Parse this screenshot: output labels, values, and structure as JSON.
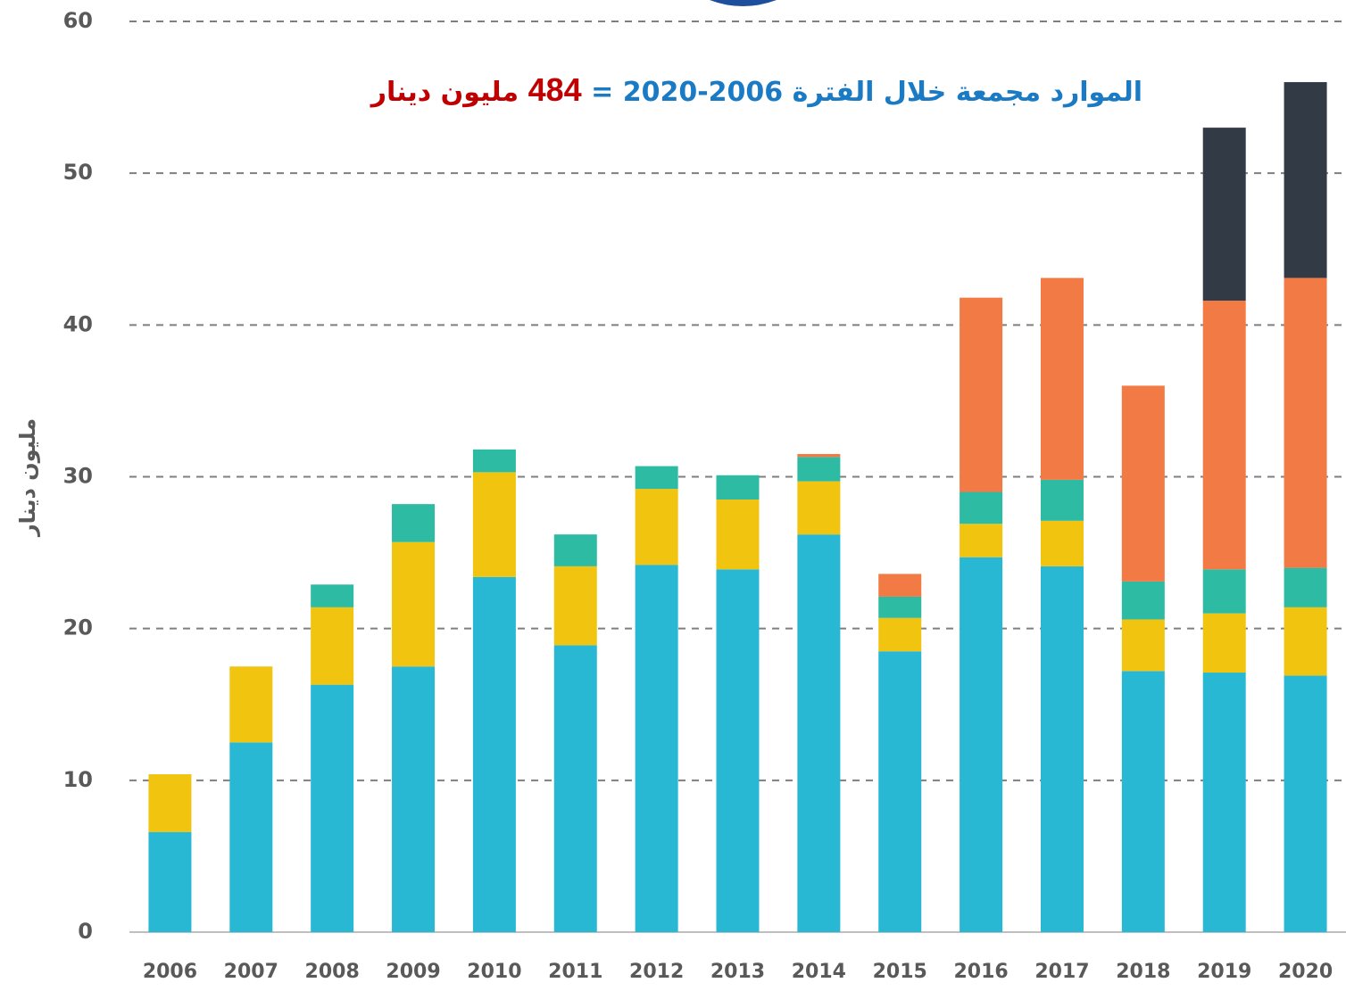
{
  "chart_data": {
    "type": "stacked_bar",
    "title": "الموارد مجمعة خلال الفترة 2006-2020 =",
    "title_total": "484",
    "title_unit": "مليون دينار",
    "ylabel": "مليون دينار",
    "categories": [
      "2006",
      "2007",
      "2008",
      "2009",
      "2010",
      "2011",
      "2012",
      "2013",
      "2014",
      "2015",
      "2016",
      "2017",
      "2018",
      "2019",
      "2020"
    ],
    "series": [
      {
        "color": "#29b8d4",
        "values": [
          6.6,
          12.5,
          16.3,
          17.5,
          23.4,
          18.9,
          24.2,
          23.9,
          26.2,
          18.5,
          24.7,
          24.1,
          17.2,
          17.1,
          16.9
        ]
      },
      {
        "color": "#f0c40f",
        "values": [
          3.8,
          5.0,
          5.1,
          8.2,
          6.9,
          5.2,
          5.0,
          4.6,
          3.5,
          2.2,
          2.2,
          3.0,
          3.4,
          3.9,
          4.5
        ]
      },
      {
        "color": "#2dbba4",
        "values": [
          null,
          null,
          1.5,
          2.5,
          1.5,
          2.1,
          1.5,
          1.6,
          1.6,
          1.4,
          2.1,
          2.7,
          2.5,
          2.9,
          2.6
        ]
      },
      {
        "color": "#f27a45",
        "values": [
          null,
          null,
          null,
          null,
          null,
          null,
          null,
          null,
          0.2,
          1.5,
          12.8,
          13.3,
          12.9,
          17.7,
          19.1
        ]
      },
      {
        "color": "#323a46",
        "values": [
          null,
          null,
          null,
          null,
          null,
          null,
          null,
          null,
          null,
          null,
          null,
          null,
          null,
          11.4,
          12.9
        ]
      }
    ],
    "ylim": [
      0,
      60
    ],
    "yticks": [
      0,
      10,
      20,
      30,
      40,
      50,
      60
    ],
    "grid": true
  }
}
